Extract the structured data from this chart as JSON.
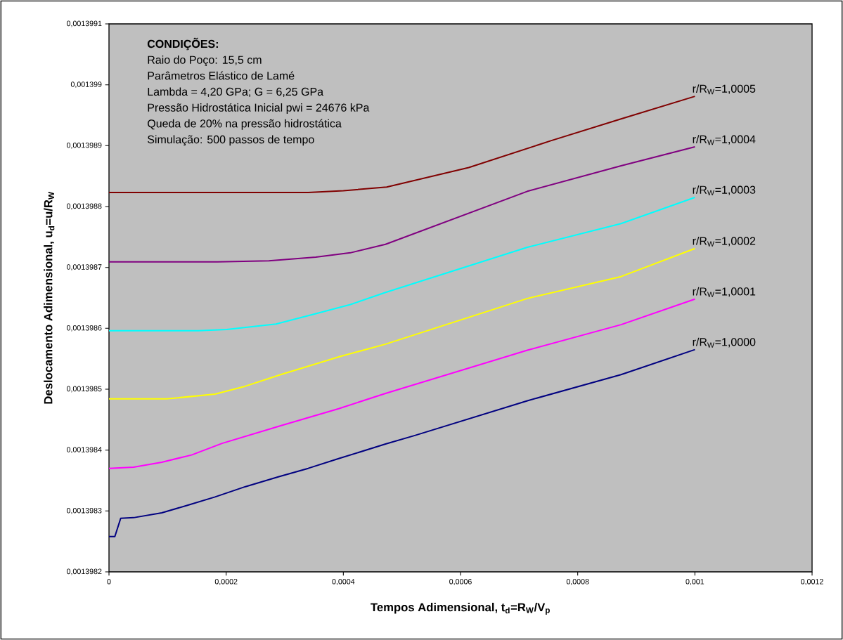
{
  "chart_data": {
    "type": "line",
    "xlabel": "Tempos Adimensional, t$_{d}$=R$_{W}$/V$_{p}$",
    "ylabel": "Deslocamento Adimensional, u$_{d}$=u/R$_{W}$",
    "annotations": [
      "CONDIÇÕES:",
      "Raio do Poço: 15,5 cm",
      "Parâmetros Elástico de Lamé",
      "Lambda = 4,20 GPa; G = 6,25 GPa",
      "Pressão Hidrostática Inicial pwi = 24676 kPa",
      "Queda de 20% na pressão hidrostática",
      "Simulação: 500 passos de tempo"
    ],
    "xlim": [
      0,
      0.0012
    ],
    "xticks": [
      0,
      {
        "value": 0.0002,
        "label": "0,0002"
      },
      {
        "value": 0.0004,
        "label": "0,0004"
      },
      {
        "value": 0.0006,
        "label": "0,0006"
      },
      {
        "value": 0.0008,
        "label": "0,0008"
      },
      {
        "value": 0.001,
        "label": "0,001"
      },
      {
        "value": 0.0012,
        "label": "0,0012"
      }
    ],
    "ylim": [
      0.0013982,
      0.0013991
    ],
    "yticks": [
      {
        "value": 0.0013982,
        "label": "0,0013982"
      },
      {
        "value": 0.0013983,
        "label": "0,0013983"
      },
      {
        "value": 0.0013984,
        "label": "0,0013984"
      },
      {
        "value": 0.0013985,
        "label": "0,0013985"
      },
      {
        "value": 0.0013986,
        "label": "0,0013986"
      },
      {
        "value": 0.0013987,
        "label": "0,0013987"
      },
      {
        "value": 0.0013988,
        "label": "0,0013988"
      },
      {
        "value": 0.0013989,
        "label": "0,0013989"
      },
      {
        "value": 0.001399,
        "label": "0,001399"
      },
      {
        "value": 0.0013991,
        "label": "0,0013991"
      }
    ],
    "marker": "none",
    "line_style": "solid",
    "series": [
      {
        "name": "r/R$_{W}$=1,0000",
        "color": "#000080",
        "x": [
          0,
          1e-05,
          2e-05,
          4.2e-05,
          9e-05,
          0.000133,
          0.000181,
          0.000233,
          0.000289,
          0.00034,
          0.000392,
          0.000472,
          0.000522,
          0.000714,
          0.000874,
          0.001
        ],
        "values": [
          0.001398258,
          0.001398258,
          0.001398288,
          0.001398289,
          0.001398297,
          0.001398309,
          0.001398323,
          0.00139834,
          0.001398356,
          0.00139837,
          0.001398386,
          0.00139841,
          0.001398424,
          0.001398481,
          0.001398524,
          0.001398565
        ]
      },
      {
        "name": "r/R$_{W}$=1,0001",
        "color": "#ff00ff",
        "x": [
          0,
          4.2e-05,
          9e-05,
          0.000141,
          0.000193,
          0.000293,
          0.000392,
          0.000472,
          0.000714,
          0.000874,
          0.001
        ],
        "values": [
          0.00139837,
          0.001398372,
          0.00139838,
          0.001398392,
          0.001398411,
          0.00139844,
          0.001398468,
          0.001398493,
          0.001398564,
          0.001398606,
          0.001398648
        ]
      },
      {
        "name": "r/R$_{W}$=1,0002",
        "color": "#ffff00",
        "x": [
          0,
          9.8e-05,
          0.000181,
          0.000233,
          0.000293,
          0.000392,
          0.000472,
          0.000714,
          0.000874,
          0.001
        ],
        "values": [
          0.001398484,
          0.001398484,
          0.001398492,
          0.001398505,
          0.001398524,
          0.001398553,
          0.001398574,
          0.001398649,
          0.001398685,
          0.001398731
        ]
      },
      {
        "name": "r/R$_{W}$=1,0003",
        "color": "#00ffff",
        "x": [
          0,
          0.000153,
          0.000201,
          0.000285,
          0.000353,
          0.000412,
          0.000472,
          0.000714,
          0.000874,
          0.001
        ],
        "values": [
          0.001398596,
          0.001398596,
          0.001398598,
          0.001398607,
          0.001398624,
          0.001398639,
          0.001398659,
          0.001398733,
          0.001398772,
          0.001398815
        ]
      },
      {
        "name": "r/R$_{W}$=1,0004",
        "color": "#800080",
        "x": [
          0,
          0.000185,
          0.000273,
          0.000353,
          0.000412,
          0.000472,
          0.000714,
          0.000874,
          0.001
        ],
        "values": [
          0.001398709,
          0.001398709,
          0.001398711,
          0.001398717,
          0.001398724,
          0.001398738,
          0.001398825,
          0.001398867,
          0.001398898
        ]
      },
      {
        "name": "r/R$_{W}$=1,0005",
        "color": "#800000",
        "x": [
          0,
          0.00034,
          0.0004,
          0.000474,
          0.000614,
          0.000754,
          0.000874,
          0.001
        ],
        "values": [
          0.001398823,
          0.001398823,
          0.001398826,
          0.001398832,
          0.001398864,
          0.001398908,
          0.001398944,
          0.001398981
        ]
      }
    ]
  }
}
